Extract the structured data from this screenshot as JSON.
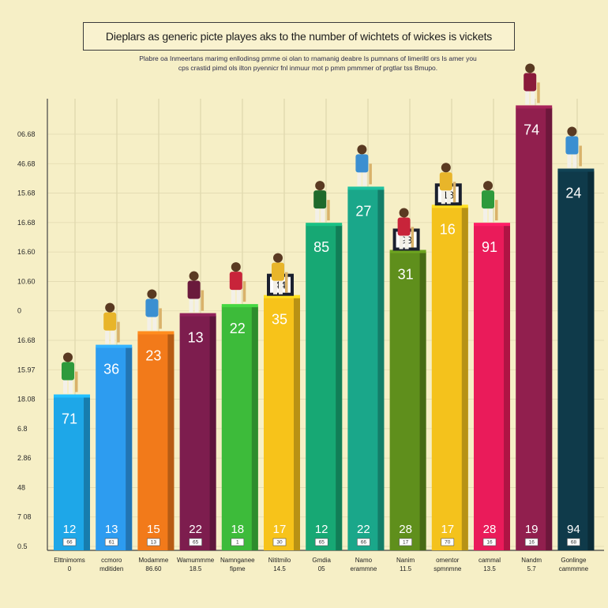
{
  "title": "Dieplars as generic picte playes aks to the number of wichtets of wickes is vickets",
  "subtitle_lines": [
    "Plabre oa Inmeertans marimg enllodinsg pmme oi olan to rnamanig deabre Is pumnans of limeriltl ors Is amer you",
    "cps crastid pimd ols ilton pyennicr fnl inmuur mot p pmm pmmmer of prgtlar tss Bmupo."
  ],
  "chart_data": {
    "type": "bar",
    "title": "Dieplars as generic picte playes aks to the number of wichtets of wickes is vickets",
    "y_tick_labels": [
      "06.68",
      "46.68",
      "15.68",
      "16.68",
      "16.60",
      "10.60",
      "0",
      "16.68",
      "15.97",
      "18.08",
      "6.8",
      "2.86",
      "48",
      "7 08",
      "0.5"
    ],
    "grid": true,
    "categories": [
      {
        "name": "Elttnimoms",
        "sub": "0"
      },
      {
        "name": "ccmoro",
        "sub": "mditiden"
      },
      {
        "name": "Modamme",
        "sub": "86.60"
      },
      {
        "name": "Wamummme",
        "sub": "18.5"
      },
      {
        "name": "Namnganee",
        "sub": "fipme"
      },
      {
        "name": "Nititmilo",
        "sub": "14.5"
      },
      {
        "name": "Gmdia",
        "sub": "05"
      },
      {
        "name": "Namo",
        "sub": "erammne"
      },
      {
        "name": "Nanim",
        "sub": "11.5"
      },
      {
        "name": "omentor",
        "sub": "spmnmne"
      },
      {
        "name": "cammal",
        "sub": "13.5"
      },
      {
        "name": "Nandm",
        "sub": "5.7"
      },
      {
        "name": "Gonlinge",
        "sub": "cammmne"
      }
    ],
    "values": [
      71,
      36,
      23,
      13,
      22,
      35,
      85,
      27,
      31,
      16,
      91,
      74,
      24
    ],
    "heights": [
      0.34,
      0.45,
      0.48,
      0.52,
      0.54,
      0.56,
      0.72,
      0.8,
      0.66,
      0.76,
      0.72,
      0.98,
      0.84
    ],
    "base_values": [
      12,
      13,
      15,
      22,
      18,
      17,
      12,
      22,
      28,
      17,
      28,
      19,
      94
    ],
    "tags": [
      "66",
      "61",
      "13",
      "65",
      "1",
      "30",
      "65",
      "66",
      "17",
      "70",
      "16",
      "16",
      "68"
    ],
    "box_labels": [
      {
        "bar_index": 5,
        "text": "44"
      },
      {
        "bar_index": 8,
        "text": "93"
      },
      {
        "bar_index": 9,
        "text": "18"
      }
    ],
    "colors": [
      "#1ea7e8",
      "#2d9cf0",
      "#f27a1a",
      "#7d1d4e",
      "#3dbb3a",
      "#f7c31a",
      "#17a874",
      "#1aa78a",
      "#5f8f1c",
      "#f4c21c",
      "#ea1b5a",
      "#911f4e",
      "#0f3a4a"
    ],
    "jersey_colors": [
      "#2e9a3c",
      "#e8b52a",
      "#3b8fd1",
      "#6a1a3c",
      "#c8243a",
      "#e8b52a",
      "#1f6a2c",
      "#3b8fd1",
      "#c8243a",
      "#e8b52a",
      "#2e9a3c",
      "#8a1a3a",
      "#3b8fd1"
    ]
  }
}
